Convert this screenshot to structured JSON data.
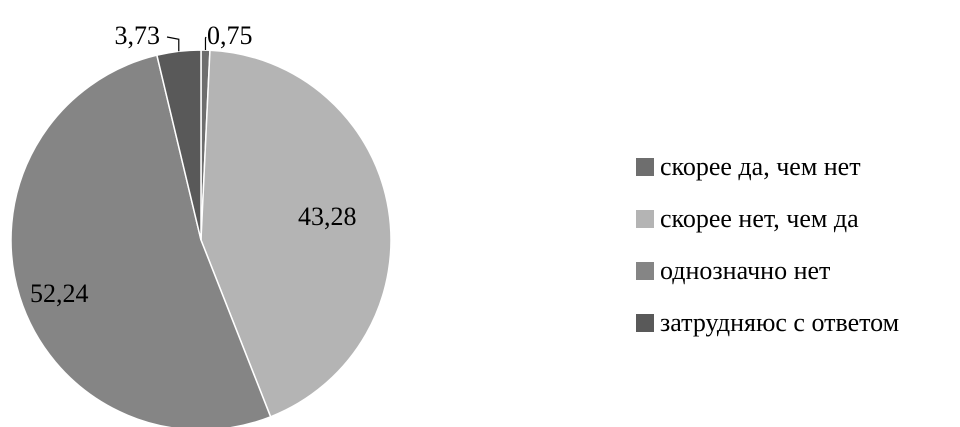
{
  "chart_data": {
    "type": "pie",
    "categories": [
      "скорее да, чем нет",
      "скорее нет, чем да",
      "однозначно нет",
      "затрудняюс с ответом"
    ],
    "values": [
      0.75,
      43.28,
      52.24,
      3.73
    ],
    "value_labels": [
      "0,75",
      "43,28",
      "52,24",
      "3,73"
    ],
    "colors": [
      "#6e6e6e",
      "#b4b4b4",
      "#858585",
      "#595959"
    ],
    "title": "",
    "legend_position": "right",
    "start_angle_deg": 0,
    "direction": "clockwise"
  }
}
